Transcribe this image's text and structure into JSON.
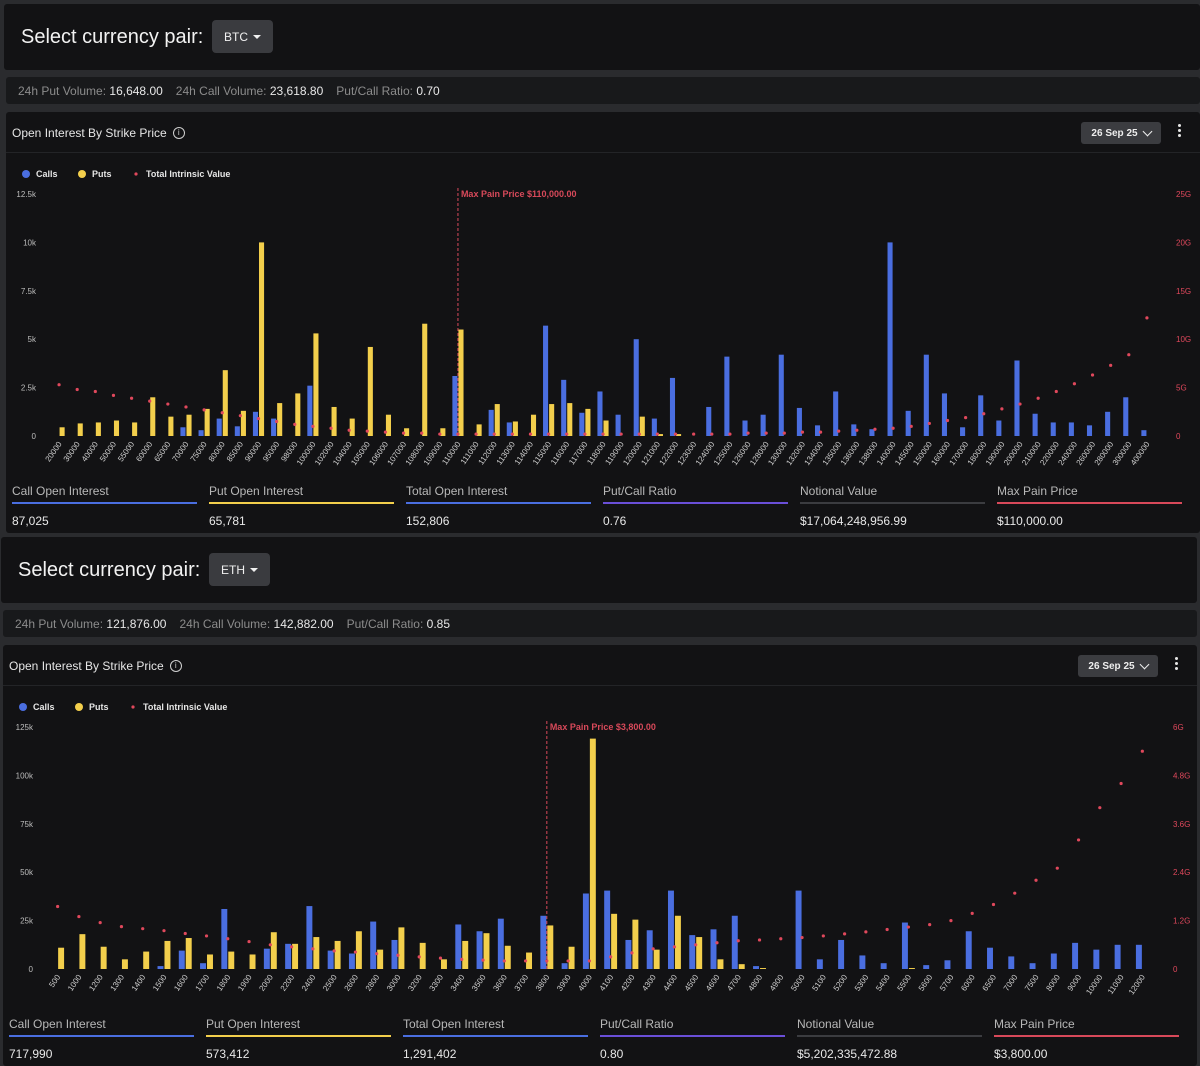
{
  "colors": {
    "calls": "#4a6ee0",
    "puts": "#f3cf4c",
    "intrinsic": "#e0485c",
    "maxpain": "#d8495a"
  },
  "panels": [
    {
      "currency_label": "Select currency pair:",
      "currency": "BTC",
      "stats": {
        "put_vol_label": "24h Put Volume:",
        "put_vol": "16,648.00",
        "call_vol_label": "24h Call Volume:",
        "call_vol": "23,618.80",
        "ratio_label": "Put/Call Ratio:",
        "ratio": "0.70"
      },
      "card_title": "Open Interest By Strike Price",
      "date": "26 Sep 25",
      "metrics": [
        {
          "label": "Call Open Interest",
          "value": "87,025",
          "color": "#4a6ee0"
        },
        {
          "label": "Put Open Interest",
          "value": "65,781",
          "color": "#f3cf4c"
        },
        {
          "label": "Total Open Interest",
          "value": "152,806",
          "color": "#4a6ee0"
        },
        {
          "label": "Put/Call Ratio",
          "value": "0.76",
          "color": "#6a4fd8"
        },
        {
          "label": "Notional Value",
          "value": "$17,064,248,956.99",
          "color": "#3b3c40"
        },
        {
          "label": "Max Pain Price",
          "value": "$110,000.00",
          "color": "#d8495a"
        }
      ],
      "chart_data": {
        "type": "bar",
        "title": "Open Interest By Strike Price",
        "legend": [
          "Calls",
          "Puts",
          "Total Intrinsic Value"
        ],
        "categories": [
          "20000",
          "30000",
          "40000",
          "50000",
          "55000",
          "60000",
          "65000",
          "70000",
          "75000",
          "80000",
          "85000",
          "90000",
          "95000",
          "98000",
          "100000",
          "102000",
          "104000",
          "105000",
          "106000",
          "107000",
          "108000",
          "109000",
          "110000",
          "111000",
          "112000",
          "113000",
          "114000",
          "115000",
          "116000",
          "117000",
          "118000",
          "119000",
          "120000",
          "121000",
          "122000",
          "123000",
          "124000",
          "125000",
          "126000",
          "128000",
          "130000",
          "132000",
          "134000",
          "135000",
          "136000",
          "138000",
          "140000",
          "145000",
          "150000",
          "160000",
          "170000",
          "180000",
          "190000",
          "200000",
          "210000",
          "220000",
          "240000",
          "260000",
          "280000",
          "300000",
          "400000"
        ],
        "series": [
          {
            "name": "Calls",
            "values": [
              0,
              0,
              0,
              0,
              0,
              0,
              0,
              450,
              300,
              900,
              500,
              1250,
              900,
              0,
              2600,
              0,
              0,
              0,
              0,
              0,
              0,
              0,
              3100,
              0,
              1350,
              700,
              0,
              5700,
              2900,
              1200,
              2300,
              1100,
              5000,
              900,
              3000,
              0,
              1500,
              4100,
              800,
              1100,
              4200,
              1450,
              550,
              2300,
              600,
              350,
              10000,
              1300,
              4200,
              2200,
              450,
              2100,
              800,
              3900,
              1150,
              700,
              700,
              550,
              1250,
              2000,
              300
            ]
          },
          {
            "name": "Puts",
            "values": [
              450,
              650,
              700,
              800,
              700,
              2000,
              1000,
              1100,
              1400,
              3400,
              1300,
              10000,
              1700,
              2200,
              5300,
              1500,
              900,
              4600,
              1100,
              400,
              5800,
              400,
              5500,
              600,
              1650,
              750,
              1100,
              1650,
              1700,
              1400,
              800,
              0,
              1000,
              100,
              100,
              0,
              0,
              0,
              0,
              0,
              0,
              0,
              0,
              0,
              0,
              0,
              0,
              0,
              0,
              0,
              0,
              0,
              0,
              0,
              0,
              0,
              0,
              0,
              0,
              0,
              0
            ]
          },
          {
            "name": "Total Intrinsic Value",
            "axis": "right",
            "values": [
              5.3,
              4.8,
              4.6,
              4.2,
              3.9,
              3.6,
              3.3,
              3.0,
              2.7,
              2.4,
              2.1,
              1.8,
              1.5,
              1.2,
              1.0,
              0.8,
              0.6,
              0.5,
              0.4,
              0.3,
              0.3,
              0.2,
              0.2,
              0.2,
              0.2,
              0.2,
              0.2,
              0.2,
              0.2,
              0.2,
              0.2,
              0.2,
              0.2,
              0.2,
              0.2,
              0.2,
              0.2,
              0.2,
              0.3,
              0.3,
              0.3,
              0.4,
              0.4,
              0.5,
              0.6,
              0.7,
              0.8,
              1.0,
              1.3,
              1.6,
              1.9,
              2.3,
              2.8,
              3.3,
              3.9,
              4.6,
              5.4,
              6.3,
              7.3,
              8.4,
              12.2
            ]
          }
        ],
        "yticks": [
          "0",
          "2.5k",
          "5k",
          "7.5k",
          "10k",
          "12.5k"
        ],
        "y2ticks": [
          "0",
          "5G",
          "10G",
          "15G",
          "20G",
          "25G"
        ],
        "ylim": [
          0,
          12500
        ],
        "y2lim": [
          0,
          25
        ],
        "max_pain": {
          "label": "Max Pain Price $110,000.00",
          "category": "110000"
        }
      }
    },
    {
      "currency_label": "Select currency pair:",
      "currency": "ETH",
      "stats": {
        "put_vol_label": "24h Put Volume:",
        "put_vol": "121,876.00",
        "call_vol_label": "24h Call Volume:",
        "call_vol": "142,882.00",
        "ratio_label": "Put/Call Ratio:",
        "ratio": "0.85"
      },
      "card_title": "Open Interest By Strike Price",
      "date": "26 Sep 25",
      "metrics": [
        {
          "label": "Call Open Interest",
          "value": "717,990",
          "color": "#4a6ee0"
        },
        {
          "label": "Put Open Interest",
          "value": "573,412",
          "color": "#f3cf4c"
        },
        {
          "label": "Total Open Interest",
          "value": "1,291,402",
          "color": "#4a6ee0"
        },
        {
          "label": "Put/Call Ratio",
          "value": "0.80",
          "color": "#6a4fd8"
        },
        {
          "label": "Notional Value",
          "value": "$5,202,335,472.88",
          "color": "#3b3c40"
        },
        {
          "label": "Max Pain Price",
          "value": "$3,800.00",
          "color": "#d8495a"
        }
      ],
      "chart_data": {
        "type": "bar",
        "title": "Open Interest By Strike Price",
        "legend": [
          "Calls",
          "Puts",
          "Total Intrinsic Value"
        ],
        "categories": [
          "500",
          "1000",
          "1200",
          "1300",
          "1400",
          "1500",
          "1600",
          "1700",
          "1800",
          "1900",
          "2000",
          "2200",
          "2400",
          "2500",
          "2600",
          "2800",
          "3000",
          "3200",
          "3300",
          "3400",
          "3500",
          "3600",
          "3700",
          "3800",
          "3900",
          "4000",
          "4100",
          "4200",
          "4300",
          "4400",
          "4500",
          "4600",
          "4700",
          "4800",
          "4900",
          "5000",
          "5100",
          "5200",
          "5300",
          "5400",
          "5500",
          "5600",
          "5700",
          "6000",
          "6500",
          "7000",
          "7500",
          "8000",
          "9000",
          "10000",
          "11000",
          "12000"
        ],
        "series": [
          {
            "name": "Calls",
            "values": [
              0,
              0,
              0,
              0,
              0,
              1500,
              9500,
              3000,
              31000,
              0,
              10500,
              13000,
              32500,
              9500,
              8000,
              24500,
              15000,
              0,
              0,
              23000,
              19500,
              26000,
              0,
              27500,
              3000,
              39000,
              40500,
              15000,
              20000,
              40500,
              17500,
              20500,
              27500,
              1500,
              0,
              40500,
              5000,
              15000,
              7000,
              3000,
              24000,
              2000,
              4500,
              19500,
              11000,
              6500,
              3000,
              8000,
              13500,
              10000,
              12500,
              12500
            ]
          },
          {
            "name": "Puts",
            "values": [
              11000,
              18000,
              11500,
              5000,
              9000,
              14500,
              16000,
              7500,
              9000,
              7500,
              19000,
              13000,
              16500,
              14500,
              19500,
              10000,
              21500,
              13500,
              5000,
              14500,
              18500,
              12000,
              8500,
              22500,
              11500,
              119000,
              28500,
              25500,
              10000,
              27500,
              16500,
              5000,
              2500,
              500,
              0,
              0,
              0,
              0,
              0,
              0,
              500,
              0,
              0,
              0,
              0,
              0,
              0,
              0,
              0,
              0,
              0,
              0
            ]
          },
          {
            "name": "Total Intrinsic Value",
            "axis": "right",
            "values": [
              1.55,
              1.3,
              1.15,
              1.05,
              1.0,
              0.95,
              0.88,
              0.82,
              0.75,
              0.68,
              0.6,
              0.55,
              0.5,
              0.45,
              0.42,
              0.38,
              0.34,
              0.3,
              0.27,
              0.24,
              0.22,
              0.2,
              0.2,
              0.2,
              0.2,
              0.2,
              0.3,
              0.4,
              0.5,
              0.55,
              0.6,
              0.65,
              0.7,
              0.72,
              0.75,
              0.78,
              0.82,
              0.87,
              0.92,
              0.98,
              1.04,
              1.1,
              1.2,
              1.38,
              1.6,
              1.88,
              2.2,
              2.5,
              3.2,
              4.0,
              4.6,
              5.4
            ]
          }
        ],
        "yticks": [
          "0",
          "25k",
          "50k",
          "75k",
          "100k",
          "125k"
        ],
        "y2ticks": [
          "0",
          "1.2G",
          "2.4G",
          "3.6G",
          "4.8G",
          "6G"
        ],
        "ylim": [
          0,
          125000
        ],
        "y2lim": [
          0,
          6
        ],
        "max_pain": {
          "label": "Max Pain Price $3,800.00",
          "category": "3800"
        }
      }
    }
  ]
}
